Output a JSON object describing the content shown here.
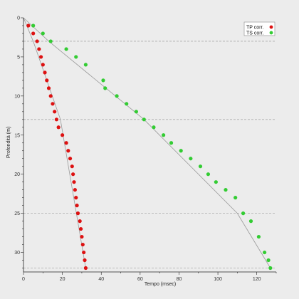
{
  "chart_data": {
    "type": "scatter",
    "title": "",
    "xlabel": "Tempo (msec)",
    "ylabel": "Profondità (m)",
    "xlim": [
      0,
      130
    ],
    "ylim": [
      0,
      32.5
    ],
    "y_inverted": true,
    "xticks": [
      0,
      20,
      40,
      60,
      80,
      100,
      120
    ],
    "yticks": [
      0,
      5,
      10,
      15,
      20,
      25,
      30
    ],
    "layer_boundaries": [
      3,
      13,
      25,
      32
    ],
    "legend_position": "top-right",
    "series": [
      {
        "name": "TP corr.",
        "color": "#dd1111",
        "x": [
          2.5,
          5,
          7,
          8,
          9,
          10,
          11,
          12,
          13,
          14,
          15,
          16,
          17,
          18,
          20,
          22,
          23,
          24,
          25,
          25.5,
          26,
          26.5,
          27,
          27.5,
          28,
          29,
          29.5,
          30,
          30.5,
          31,
          31.5,
          32
        ],
        "y": [
          1,
          2,
          3,
          4,
          5,
          6,
          7,
          8,
          9,
          10,
          11,
          12,
          13,
          14,
          15,
          16,
          17,
          18,
          19,
          20,
          21,
          22,
          23,
          24,
          25,
          26,
          27,
          28,
          29,
          30,
          31,
          32
        ]
      },
      {
        "name": "TS corr.",
        "color": "#33cc33",
        "x": [
          5,
          10,
          14,
          22,
          27,
          32,
          41,
          42,
          48,
          53,
          58,
          62,
          67,
          72,
          76,
          81,
          86,
          91,
          95,
          99,
          104,
          109,
          113,
          117,
          121,
          124,
          126,
          127
        ],
        "y": [
          1,
          2,
          3,
          4,
          5,
          6,
          8,
          9,
          10,
          11,
          12,
          13,
          14,
          15,
          16,
          17,
          18,
          19,
          20,
          21,
          22,
          23,
          25,
          26,
          28,
          30,
          31,
          32
        ]
      }
    ],
    "trendlines": [
      {
        "series": "TP corr.",
        "points": [
          [
            0,
            0
          ],
          [
            5,
            3
          ],
          [
            19,
            13
          ],
          [
            32,
            32
          ]
        ]
      },
      {
        "series": "TS corr.",
        "points": [
          [
            0,
            0
          ],
          [
            13,
            3
          ],
          [
            62,
            13
          ],
          [
            110,
            25
          ],
          [
            127,
            32
          ]
        ]
      }
    ]
  }
}
